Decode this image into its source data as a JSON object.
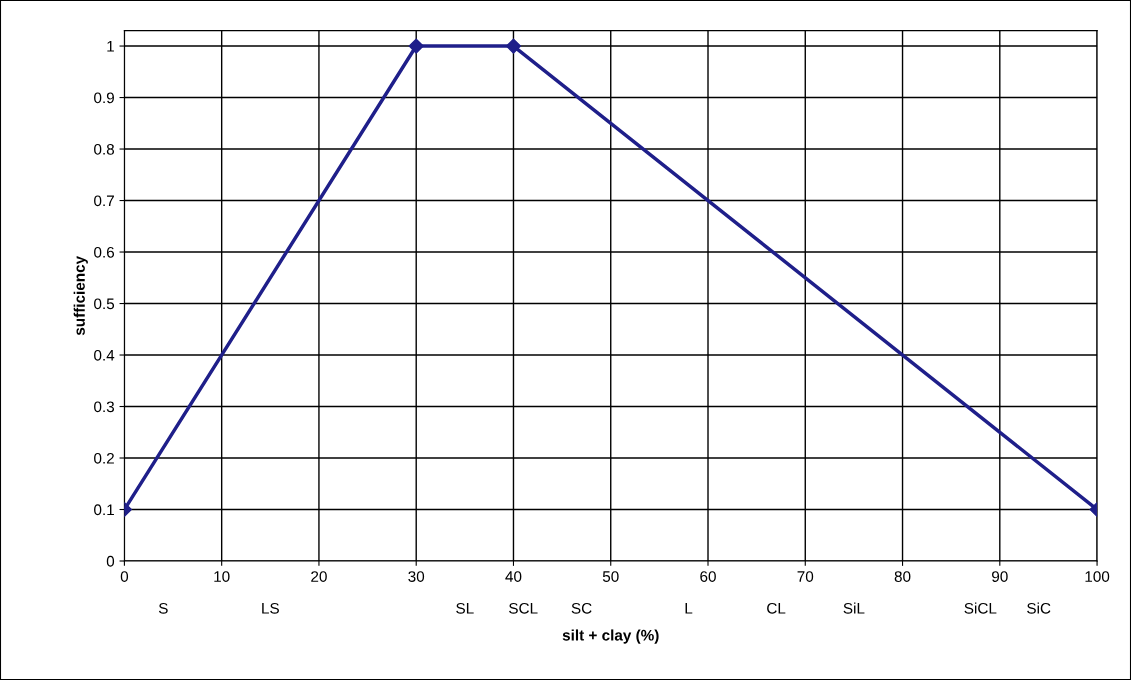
{
  "chart_data": {
    "type": "line",
    "xlabel": "silt + clay (%)",
    "ylabel": "sufficiency",
    "x": [
      0,
      30,
      40,
      100
    ],
    "series": [
      {
        "color": "#1f1f8a",
        "values": [
          0.1,
          1,
          1,
          0.1
        ]
      }
    ],
    "marker": "diamond",
    "line_style": "solid",
    "grid": true,
    "xlim": [
      0,
      100
    ],
    "xticks": [
      0,
      10,
      20,
      30,
      40,
      50,
      60,
      70,
      80,
      90,
      100
    ],
    "ylim": [
      0,
      1.03
    ],
    "yticks": [
      0,
      0.1,
      0.2,
      0.3,
      0.4,
      0.5,
      0.6,
      0.7,
      0.8,
      0.9,
      1
    ],
    "annotations": [
      "S",
      "LS",
      "SL",
      "SCL",
      "SC",
      "L",
      "CL",
      "SiL",
      "SiCL",
      "SiC"
    ]
  }
}
